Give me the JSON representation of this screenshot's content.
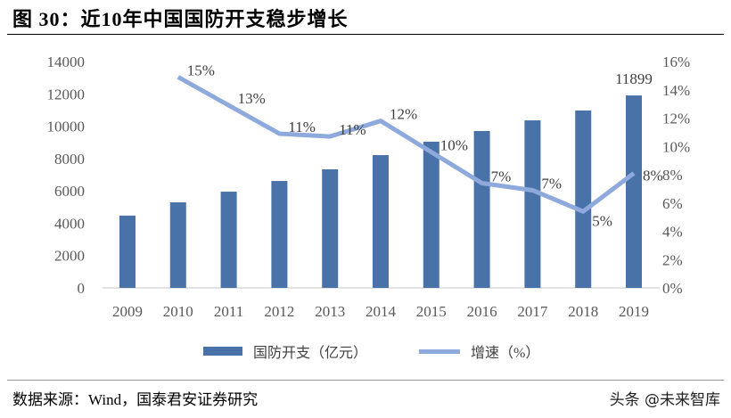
{
  "title": "图 30：近10年中国国防开支稳步增长",
  "source": "数据来源：Wind，国泰君安证券研究",
  "watermark": "头条 @未来智库",
  "chart_data": {
    "type": "bar+line",
    "title": "",
    "categories": [
      "2009",
      "2010",
      "2011",
      "2012",
      "2013",
      "2014",
      "2015",
      "2016",
      "2017",
      "2018",
      "2019"
    ],
    "series": [
      {
        "name": "国防开支（亿元）",
        "type": "bar",
        "axis": "left",
        "color": "#4872A8",
        "values": [
          4470,
          5290,
          5950,
          6610,
          7330,
          8210,
          9040,
          9700,
          10360,
          10970,
          11899
        ]
      },
      {
        "name": "增速（%）",
        "type": "line",
        "axis": "right",
        "color": "#8EA9DB",
        "values": [
          null,
          14.9,
          12.9,
          10.9,
          10.7,
          11.8,
          9.6,
          7.4,
          6.9,
          5.4,
          8.1
        ],
        "labels": [
          null,
          "15%",
          "13%",
          "11%",
          "11%",
          "12%",
          "10%",
          "7%",
          "7%",
          "5%",
          "8%"
        ]
      }
    ],
    "bar_data_labels": [
      null,
      null,
      null,
      null,
      null,
      null,
      null,
      null,
      null,
      null,
      "11899"
    ],
    "left_axis": {
      "ylim": [
        0,
        14000
      ],
      "ticks": [
        "0",
        "2000",
        "4000",
        "6000",
        "8000",
        "10000",
        "12000",
        "14000"
      ]
    },
    "right_axis": {
      "ylim": [
        0,
        16
      ],
      "ticks": [
        "0%",
        "2%",
        "4%",
        "6%",
        "8%",
        "10%",
        "12%",
        "14%",
        "16%"
      ]
    },
    "grid": false,
    "legend_position": "bottom"
  }
}
